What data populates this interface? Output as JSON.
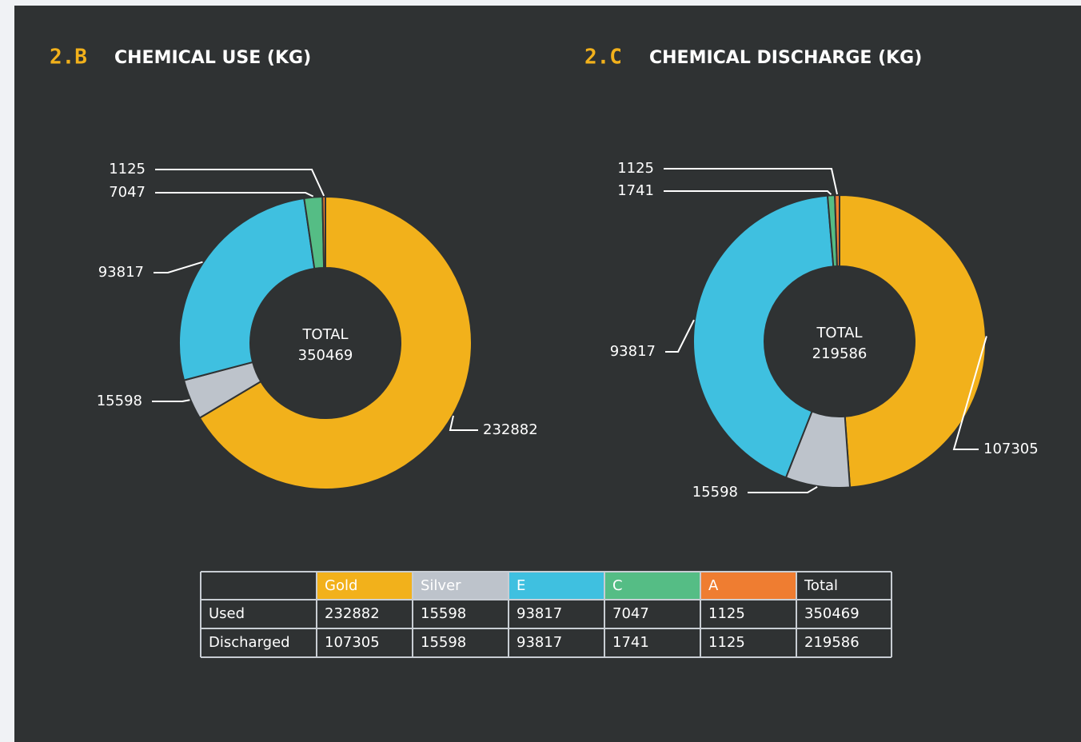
{
  "chart_data": [
    {
      "type": "donut",
      "section": "2.B",
      "title": "CHEMICAL USE (KG)",
      "center_label": "TOTAL",
      "total": 350469,
      "values": [
        232882,
        15598,
        93817,
        7047,
        1125
      ],
      "colors": [
        "#f2b11b",
        "#bdc3cb",
        "#3fc0e0",
        "#55bd85",
        "#ef7d31"
      ]
    },
    {
      "type": "donut",
      "section": "2.C",
      "title": "CHEMICAL DISCHARGE (KG)",
      "center_label": "TOTAL",
      "total": 219586,
      "values": [
        107305,
        15598,
        93817,
        1741,
        1125
      ],
      "colors": [
        "#f2b11b",
        "#bdc3cb",
        "#3fc0e0",
        "#55bd85",
        "#ef7d31"
      ]
    }
  ],
  "table": {
    "header": [
      "Gold",
      "Silver",
      "E",
      "C",
      "A",
      "Total"
    ],
    "rows": [
      {
        "label": "Used",
        "values": [
          232882,
          15598,
          93817,
          7047,
          1125,
          350469
        ]
      },
      {
        "label": "Discharged",
        "values": [
          107305,
          15598,
          93817,
          1741,
          1125,
          219586
        ]
      }
    ]
  }
}
